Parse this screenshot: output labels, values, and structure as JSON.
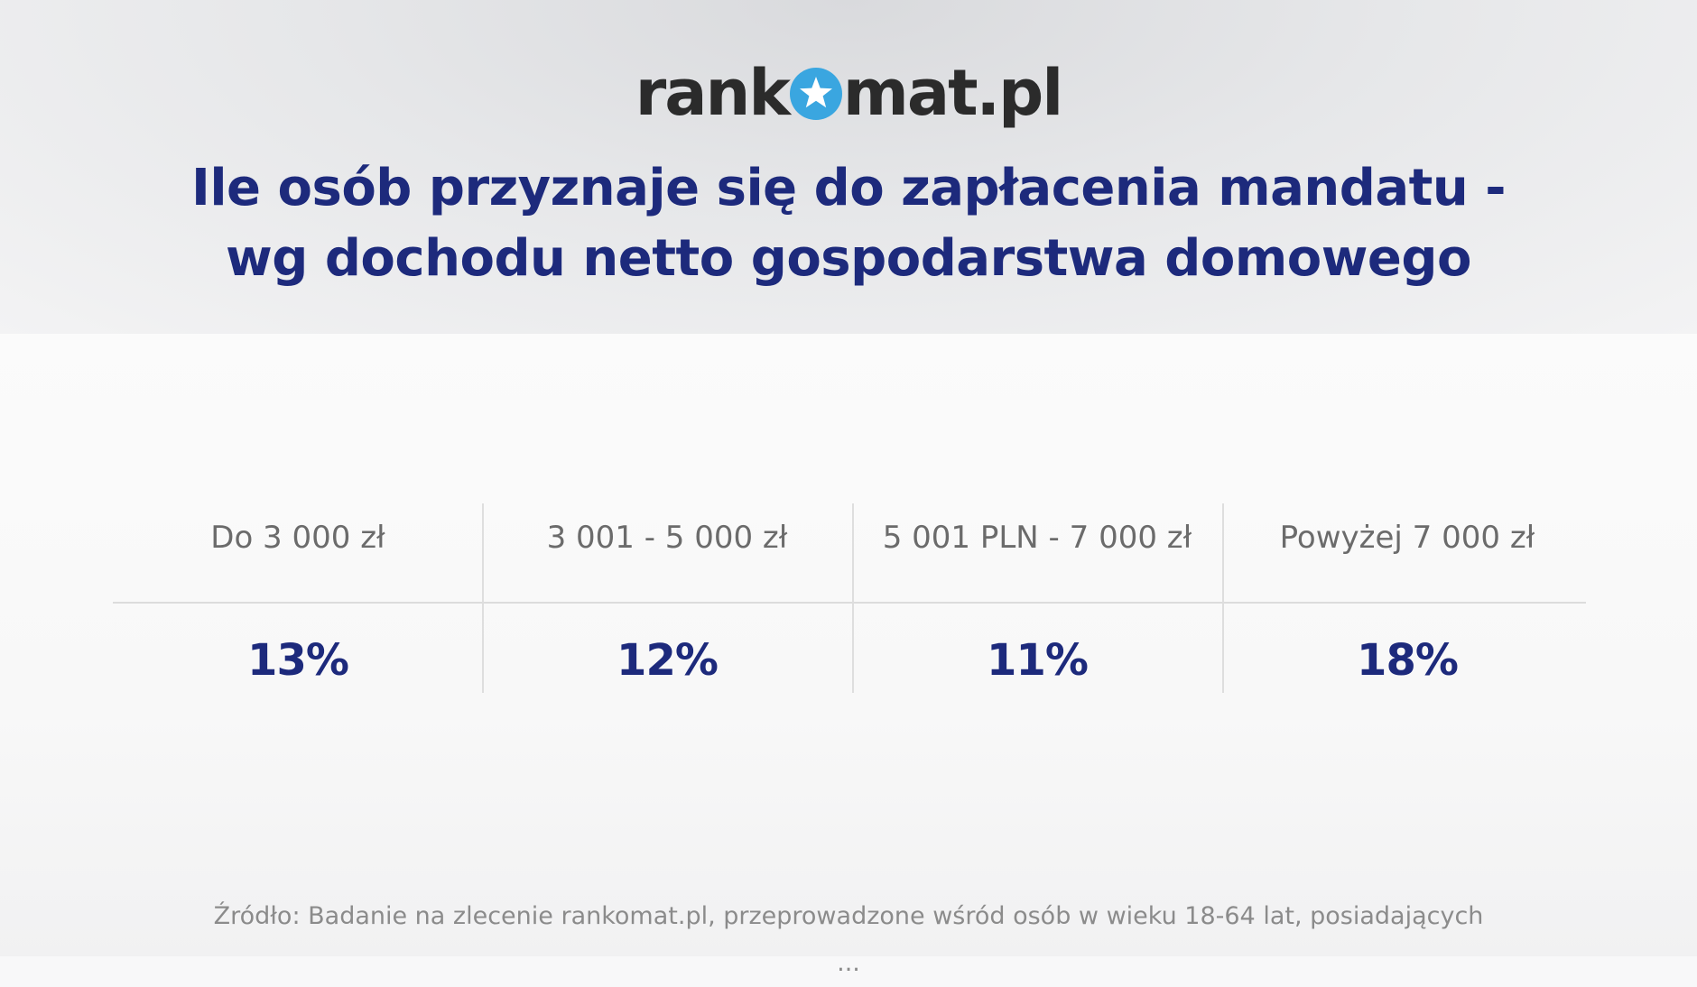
{
  "logo": {
    "text_before": "rank",
    "text_after": "mat.pl"
  },
  "colors": {
    "title": "#1d2a7c",
    "logo_dark": "#2b2b2b",
    "logo_star_circle": "#3aa6e0",
    "header_text": "#6b6b6b",
    "source_text": "#8b8b8b"
  },
  "chart_data": {
    "type": "table",
    "title_lines": [
      "Ile osób przyznaje się do zapłacenia mandatu -",
      "wg dochodu netto gospodarstwa domowego"
    ],
    "columns": [
      "Do 3 000 zł",
      "3 001 - 5 000 zł",
      "5 001 PLN - 7 000 zł",
      "Powyżej 7 000 zł"
    ],
    "values": [
      13,
      12,
      11,
      18
    ],
    "value_labels": [
      "13%",
      "12%",
      "11%",
      "18%"
    ]
  },
  "source": {
    "line1": "Źródło: Badanie na zlecenie rankomat.pl, przeprowadzone wśród osób w wieku 18-64 lat, posiadających",
    "line2": "..."
  }
}
